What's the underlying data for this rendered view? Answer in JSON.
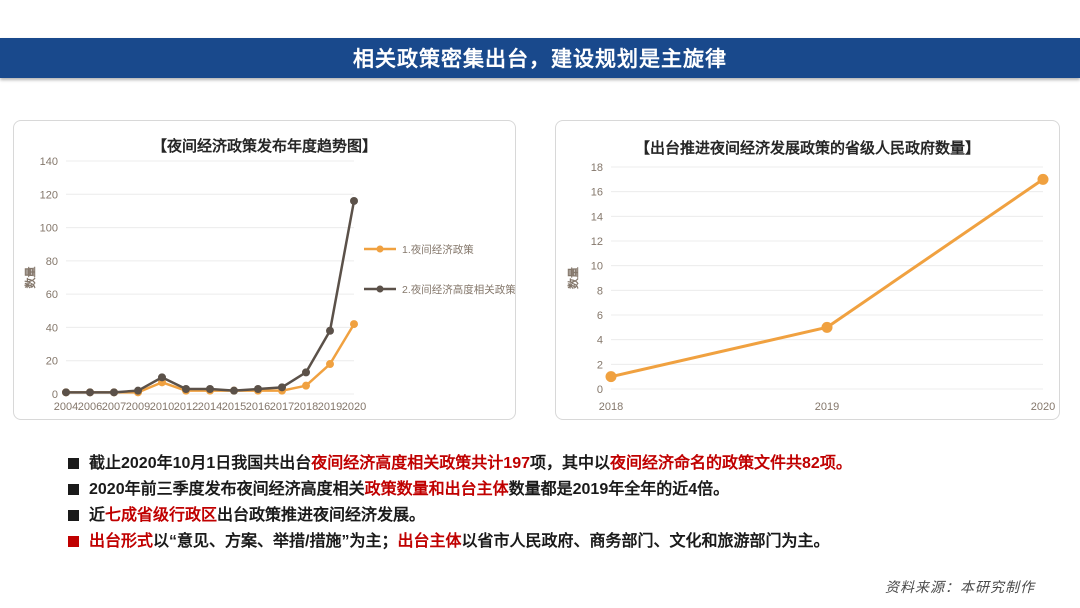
{
  "header": {
    "title": "相关政策密集出台，建设规划是主旋律"
  },
  "colors": {
    "header_bg": "#19498C",
    "header_text": "#FFFFFF",
    "emphasis_red": "#C00000",
    "body_text": "#1A1A1A",
    "axis_text": "#84776B",
    "grid_line": "#ECECEC",
    "panel_border": "#D8D8D8",
    "series_orange": "#F0A140",
    "series_dark": "#5B5149",
    "source_text": "#4A4A4A"
  },
  "chart_data": [
    {
      "type": "line",
      "title": "【夜间经济政策发布年度趋势图】",
      "xlabel": "",
      "ylabel": "数量",
      "categories": [
        "2004",
        "2006",
        "2007",
        "2009",
        "2010",
        "2012",
        "2014",
        "2015",
        "2016",
        "2017",
        "2018",
        "2019",
        "2020"
      ],
      "series": [
        {
          "name": "1.夜间经济政策",
          "color": "#F0A140",
          "values": [
            1,
            1,
            1,
            1,
            7,
            2,
            2,
            2,
            2,
            2,
            5,
            18,
            42
          ]
        },
        {
          "name": "2.夜间经济高度相关政策",
          "color": "#5B5149",
          "values": [
            1,
            1,
            1,
            2,
            10,
            3,
            3,
            2,
            3,
            4,
            13,
            38,
            116
          ]
        }
      ],
      "ylim": [
        0,
        140
      ],
      "ytick_step": 20,
      "grid": true,
      "legend_position": "right"
    },
    {
      "type": "line",
      "title": "【出台推进夜间经济发展政策的省级人民政府数量】",
      "xlabel": "",
      "ylabel": "数量",
      "categories": [
        "2018",
        "2019",
        "2020"
      ],
      "series": [
        {
          "name": "出台推进夜间经济发展政策的省级人民政府数量",
          "color": "#F0A140",
          "values": [
            1,
            5,
            17
          ]
        }
      ],
      "ylim": [
        0,
        18
      ],
      "ytick_step": 2,
      "grid": true,
      "legend_position": "none"
    }
  ],
  "bullets": [
    {
      "bullet_color": "#1A1A1A",
      "segments": [
        {
          "text": "截止2020年10月1日我国共出台",
          "color": "#1A1A1A"
        },
        {
          "text": "夜间经济高度相关政策共计197",
          "color": "#C00000"
        },
        {
          "text": "项，其中以",
          "color": "#1A1A1A"
        },
        {
          "text": "夜间经济命名的政策文件共82项。",
          "color": "#C00000"
        }
      ]
    },
    {
      "bullet_color": "#1A1A1A",
      "segments": [
        {
          "text": "2020年前三季度发布夜间经济高度相关",
          "color": "#1A1A1A"
        },
        {
          "text": "政策数量和出台主体",
          "color": "#C00000"
        },
        {
          "text": "数量都是2019年全年的近4倍。",
          "color": "#1A1A1A"
        }
      ]
    },
    {
      "bullet_color": "#1A1A1A",
      "segments": [
        {
          "text": "近",
          "color": "#1A1A1A"
        },
        {
          "text": "七成省级行政区",
          "color": "#C00000"
        },
        {
          "text": "出台政策推进夜间经济发展。",
          "color": "#1A1A1A"
        }
      ]
    },
    {
      "bullet_color": "#C00000",
      "segments": [
        {
          "text": "出台形式",
          "color": "#C00000"
        },
        {
          "text": "以“意见、方案、举措/措施”为主；",
          "color": "#1A1A1A"
        },
        {
          "text": "出台主体",
          "color": "#C00000"
        },
        {
          "text": "以省市人民政府、商务部门、文化和旅游部门为主。",
          "color": "#1A1A1A"
        }
      ]
    }
  ],
  "footer": {
    "source": "资料来源：本研究制作"
  }
}
